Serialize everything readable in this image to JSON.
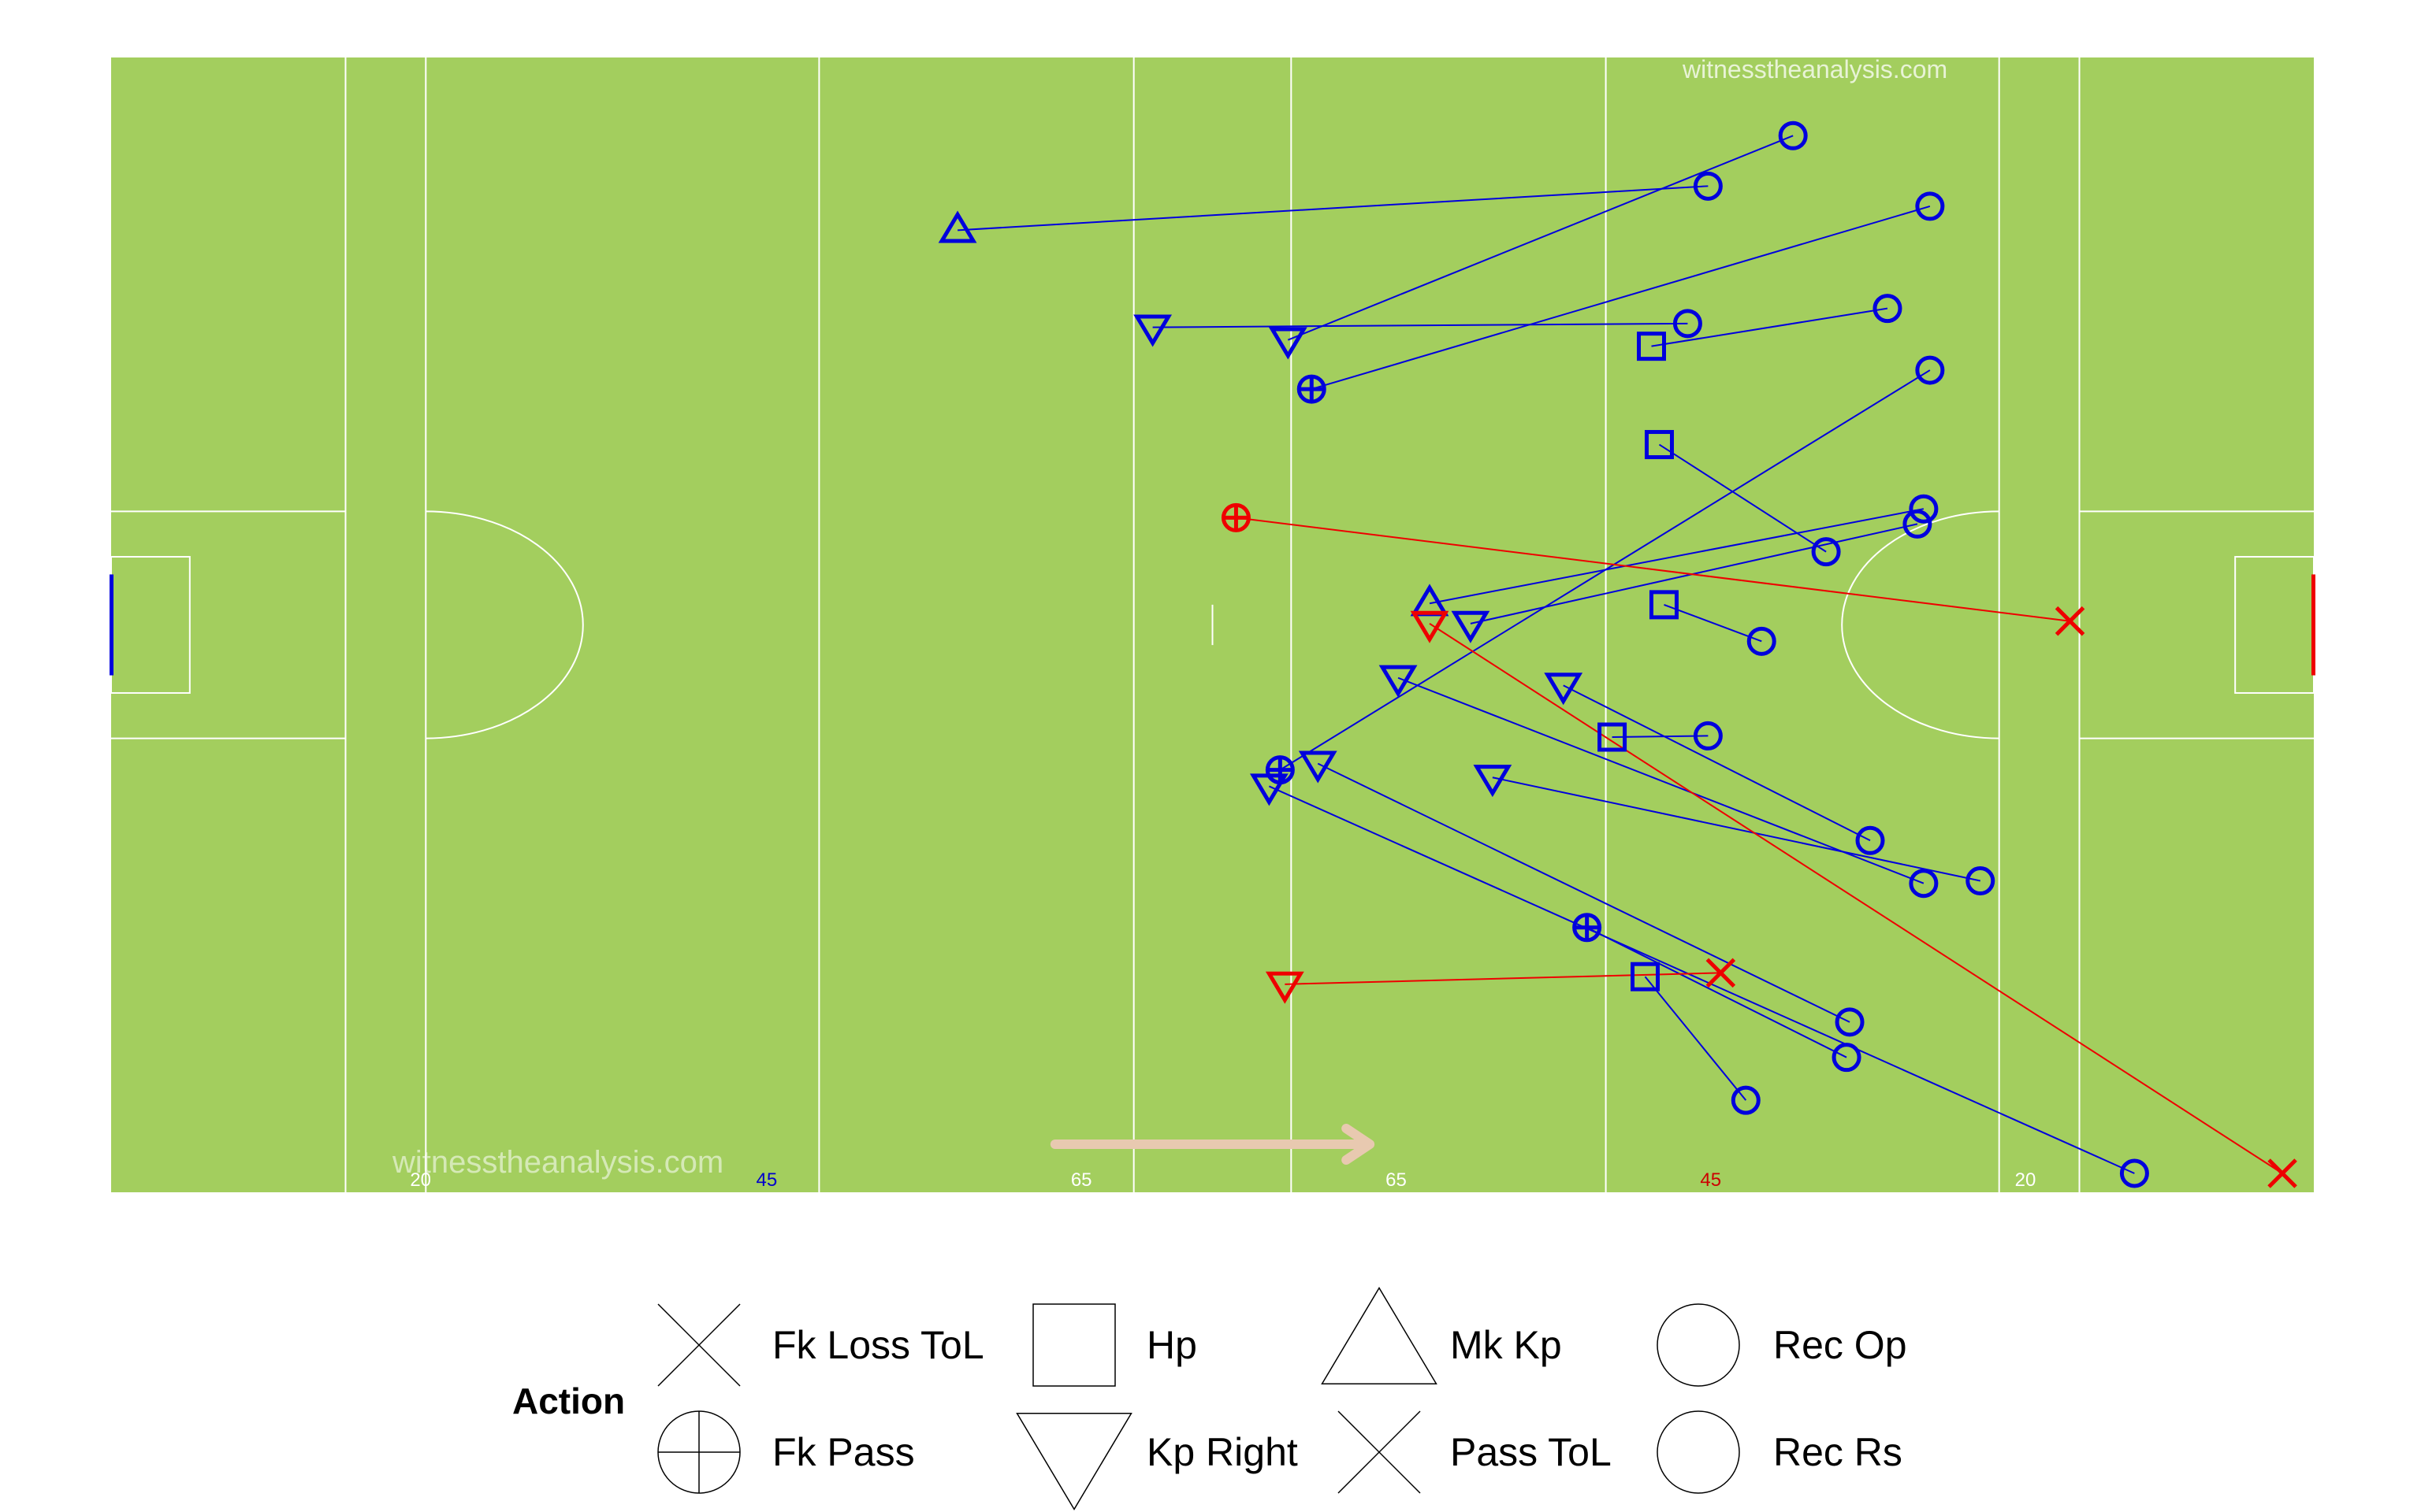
{
  "watermarks": [
    "witnesstheanalysis.com",
    "witnesstheanalysis.com"
  ],
  "pitch": {
    "line_labels": [
      {
        "text": "20",
        "color": "#ffffff"
      },
      {
        "text": "45",
        "color": "#0000cc"
      },
      {
        "text": "65",
        "color": "#ffffff"
      },
      {
        "text": "65",
        "color": "#ffffff"
      },
      {
        "text": "45",
        "color": "#cc0000"
      },
      {
        "text": "20",
        "color": "#ffffff"
      }
    ],
    "grass_color": "#a3ce5e",
    "team_colors": {
      "home": "#0000dd",
      "away": "#ee0000"
    },
    "direction_arrow_color": "#e8c9b0"
  },
  "chart_data": {
    "type": "scatter",
    "x_unit": "metres",
    "xlim": [
      0,
      140
    ],
    "ylim": [
      0,
      90
    ],
    "actions": [
      {
        "team": "home",
        "action": "Mk Kp",
        "from": [
          53.8,
          76.3
        ],
        "to": [
          101.5,
          79.8
        ]
      },
      {
        "team": "home",
        "action": "Kp Right",
        "from": [
          74.8,
          67.6
        ],
        "to": [
          106.9,
          83.8
        ]
      },
      {
        "team": "home",
        "action": "Kp Right",
        "from": [
          66.2,
          68.6
        ],
        "to": [
          100.2,
          68.9
        ]
      },
      {
        "team": "home",
        "action": "Hp",
        "from": [
          97.9,
          67.1
        ],
        "to": [
          112.9,
          70.1
        ]
      },
      {
        "team": "home",
        "action": "Fk Pass",
        "from": [
          76.3,
          63.7
        ],
        "to": [
          115.6,
          78.2
        ]
      },
      {
        "team": "home",
        "action": "Hp",
        "from": [
          98.4,
          59.3
        ],
        "to": [
          109.0,
          50.8
        ]
      },
      {
        "team": "home",
        "action": "Fk Pass",
        "from": [
          74.3,
          33.5
        ],
        "to": [
          115.6,
          65.2
        ]
      },
      {
        "team": "home",
        "action": "Mk Kp",
        "from": [
          83.8,
          46.7
        ],
        "to": [
          115.2,
          54.2
        ]
      },
      {
        "team": "home",
        "action": "Kp Right",
        "from": [
          86.4,
          45.1
        ],
        "to": [
          114.8,
          53.0
        ]
      },
      {
        "team": "home",
        "action": "Hp",
        "from": [
          98.7,
          46.6
        ],
        "to": [
          104.9,
          43.7
        ]
      },
      {
        "team": "home",
        "action": "Kp Right",
        "from": [
          92.3,
          40.2
        ],
        "to": [
          111.8,
          27.9
        ]
      },
      {
        "team": "home",
        "action": "Hp",
        "from": [
          95.4,
          36.1
        ],
        "to": [
          101.5,
          36.2
        ]
      },
      {
        "team": "home",
        "action": "Kp Right",
        "from": [
          81.8,
          40.8
        ],
        "to": [
          115.2,
          24.5
        ]
      },
      {
        "team": "home",
        "action": "Kp Right",
        "from": [
          87.8,
          32.9
        ],
        "to": [
          118.8,
          24.7
        ]
      },
      {
        "team": "home",
        "action": "Kp Right",
        "from": [
          76.7,
          34.0
        ],
        "to": [
          110.5,
          13.5
        ]
      },
      {
        "team": "home",
        "action": "Fk Pass",
        "from": [
          93.8,
          21.0
        ],
        "to": [
          110.3,
          10.7
        ]
      },
      {
        "team": "home",
        "action": "Kp Right",
        "from": [
          73.6,
          32.2
        ],
        "to": [
          128.6,
          1.5
        ]
      },
      {
        "team": "home",
        "action": "Hp",
        "from": [
          97.5,
          17.1
        ],
        "to": [
          103.9,
          7.3
        ]
      },
      {
        "team": "away",
        "action": "Fk Pass",
        "from": [
          71.5,
          53.5
        ],
        "to": [
          124.5,
          45.3
        ]
      },
      {
        "team": "away",
        "action": "Kp Right",
        "from": [
          83.8,
          45.1
        ],
        "to": [
          138.0,
          1.5
        ]
      },
      {
        "team": "away",
        "action": "Kp Right",
        "from": [
          74.6,
          16.5
        ],
        "to": [
          102.3,
          17.4
        ]
      }
    ],
    "legend": {
      "title": "Action",
      "entries": [
        {
          "label": "Fk Loss ToL",
          "symbol": "x"
        },
        {
          "label": "Fk Pass",
          "symbol": "circle-plus"
        },
        {
          "label": "Hp",
          "symbol": "square"
        },
        {
          "label": "Kp Right",
          "symbol": "triangle-down"
        },
        {
          "label": "Mk Kp",
          "symbol": "triangle-up"
        },
        {
          "label": "Pass ToL",
          "symbol": "x"
        },
        {
          "label": "Rec Op",
          "symbol": "circle"
        },
        {
          "label": "Rec Rs",
          "symbol": "circle"
        }
      ],
      "placement": "bottom"
    }
  }
}
